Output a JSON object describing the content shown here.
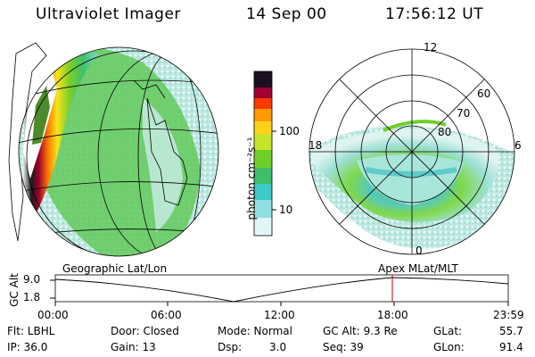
{
  "header": {
    "instrument": "Ultraviolet Imager",
    "date": "14 Sep 00",
    "time": "17:56:12 UT"
  },
  "colorbar": {
    "unit_label": "photon cm⁻²s⁻¹",
    "ticks": [
      "100",
      "10"
    ]
  },
  "polar": {
    "lat_labels": [
      "60",
      "70",
      "80"
    ],
    "mlt_labels": {
      "top": "12",
      "left": "18",
      "right": "6",
      "bottom": "0"
    }
  },
  "panel_labels": {
    "left": "Geographic Lat/Lon",
    "right": "Apex MLat/MLT"
  },
  "altitude_plot": {
    "axis_label": "GC Alt",
    "y_ticks": [
      "9.0",
      "1.8"
    ],
    "x_ticks": [
      "00:00",
      "06:00",
      "12:00",
      "18:00",
      "23:59"
    ],
    "marker_color": "#cc0000"
  },
  "status": {
    "flt": "Flt: LBHL",
    "ip": "IP: 36.0",
    "door": "Door: Closed",
    "gain": "Gain: 13",
    "mode": "Mode: Normal",
    "dsp_label": "Dsp:",
    "dsp_value": "3.0",
    "gc_alt": "GC Alt: 9.3 Re",
    "seq": "Seq: 39",
    "glat_label": "GLat:",
    "glat_value": "55.7",
    "glon_label": "GLon:",
    "glon_value": "91.4"
  }
}
